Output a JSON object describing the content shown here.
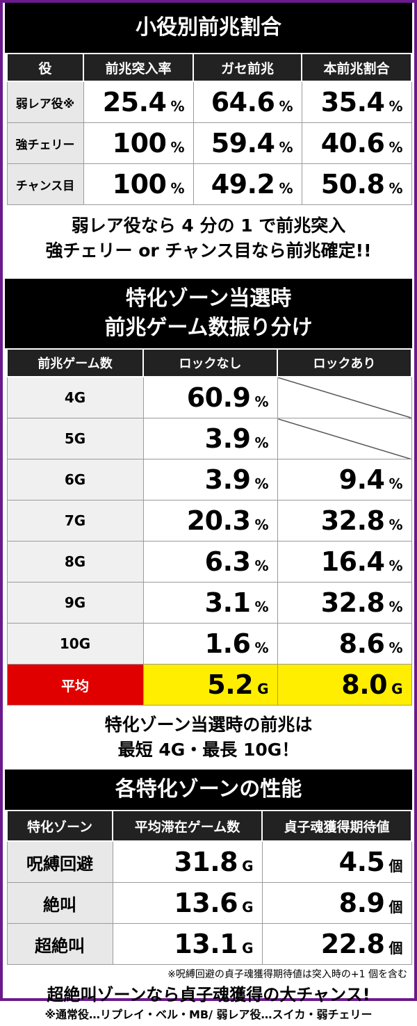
{
  "section1": {
    "title": "小役別前兆割合",
    "headers": [
      "役",
      "前兆突入率",
      "ガセ前兆",
      "本前兆割合"
    ],
    "rows": [
      {
        "label": "弱レア役※",
        "values": [
          "25.4",
          "64.6",
          "35.4"
        ]
      },
      {
        "label": "強チェリー",
        "values": [
          "100",
          "59.4",
          "40.6"
        ]
      },
      {
        "label": "チャンス目",
        "values": [
          "100",
          "49.2",
          "50.8"
        ]
      }
    ],
    "unit": "%",
    "note_line1": "弱レア役なら 4 分の 1 で前兆突入",
    "note_line2": "強チェリー or チャンス目なら前兆確定!!"
  },
  "section2": {
    "title_line1": "特化ゾーン当選時",
    "title_line2": "前兆ゲーム数振り分け",
    "headers": [
      "前兆ゲーム数",
      "ロックなし",
      "ロックあり"
    ],
    "rows": [
      {
        "label": "4G",
        "nolock": "60.9",
        "lock": ""
      },
      {
        "label": "5G",
        "nolock": "3.9",
        "lock": ""
      },
      {
        "label": "6G",
        "nolock": "3.9",
        "lock": "9.4"
      },
      {
        "label": "7G",
        "nolock": "20.3",
        "lock": "32.8"
      },
      {
        "label": "8G",
        "nolock": "6.3",
        "lock": "16.4"
      },
      {
        "label": "9G",
        "nolock": "3.1",
        "lock": "32.8"
      },
      {
        "label": "10G",
        "nolock": "1.6",
        "lock": "8.6"
      }
    ],
    "unit": "%",
    "avg": {
      "label": "平均",
      "nolock": "5.2",
      "lock": "8.0",
      "unit": "G"
    },
    "note_line1": "特化ゾーン当選時の前兆は",
    "note_line2": "最短 4G・最長 10G！"
  },
  "section3": {
    "title": "各特化ゾーンの性能",
    "headers": [
      "特化ゾーン",
      "平均滞在ゲーム数",
      "貞子魂獲得期待値"
    ],
    "rows": [
      {
        "label": "呪縛回避",
        "games": "31.8",
        "expect": "4.5"
      },
      {
        "label": "絶叫",
        "games": "13.6",
        "expect": "8.9"
      },
      {
        "label": "超絶叫",
        "games": "13.1",
        "expect": "22.8"
      }
    ],
    "games_unit": "G",
    "expect_unit": "個",
    "small_note": "※呪縛回避の貞子魂獲得期待値は突入時の+1 個を含む",
    "note": "超絶叫ゾーンなら貞子魂獲得の大チャンス!"
  },
  "footer_note": "※通常役…リプレイ・ベル・MB/ 弱レア役…スイカ・弱チェリー",
  "colors": {
    "frame": "#6a1a8c",
    "avg_label": "#e00000",
    "avg_value": "#ffee00"
  }
}
